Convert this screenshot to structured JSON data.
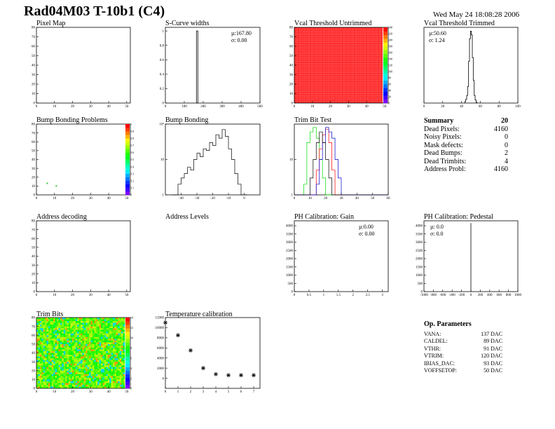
{
  "header": {
    "title": "Rad04M03 T-10b1 (C4)",
    "date": "Wed May 24 18:08:28 2006"
  },
  "panels": {
    "pixel_map": {
      "title": "Pixel Map"
    },
    "scurve": {
      "title": "S-Curve widths",
      "mu": "µ:167.80",
      "sigma": "σ: 0.00"
    },
    "vcal_untrimmed": {
      "title": "Vcal Threshold Untrimmed"
    },
    "vcal_trimmed": {
      "title": "Vcal Threshold Trimmed",
      "mu": "µ:50.60",
      "sigma": "σ: 1.24"
    },
    "bump_problems": {
      "title": "Bump Bonding Problems"
    },
    "bump_bonding": {
      "title": "Bump Bonding"
    },
    "trim_bit_test": {
      "title": "Trim Bit Test"
    },
    "address_decoding": {
      "title": "Address decoding"
    },
    "address_levels": {
      "title": "Address Levels"
    },
    "ph_gain": {
      "title": "PH Calibration: Gain",
      "mu": "µ:0.00",
      "sigma": "σ: 0.00"
    },
    "ph_pedestal": {
      "title": "PH Calibration: Pedestal",
      "mu": "µ: 0.0",
      "sigma": "σ: 0.0"
    },
    "trim_bits": {
      "title": "Trim Bits"
    },
    "temperature": {
      "title": "Temperature calibration"
    }
  },
  "summary": {
    "label": "Summary",
    "value": "20",
    "rows": [
      {
        "label": "Dead Pixels:",
        "value": "4160"
      },
      {
        "label": "Noisy Pixels:",
        "value": "0"
      },
      {
        "label": "Mask defects:",
        "value": "0"
      },
      {
        "label": "Dead Bumps:",
        "value": "2"
      },
      {
        "label": "Dead Trimbits:",
        "value": "4"
      },
      {
        "label": "Address Probl:",
        "value": "4160"
      }
    ]
  },
  "op_params": {
    "title": "Op. Parameters",
    "rows": [
      {
        "label": "VANA:",
        "value": "137 DAC"
      },
      {
        "label": "CALDEL:",
        "value": "89 DAC"
      },
      {
        "label": "VTHR:",
        "value": "91 DAC"
      },
      {
        "label": "VTRIM:",
        "value": "120 DAC"
      },
      {
        "label": "IBIAS_DAC:",
        "value": "93 DAC"
      },
      {
        "label": "VOFFSETOP:",
        "value": "50 DAC"
      }
    ]
  },
  "colors": {
    "frame": "#000000",
    "untrimmed_fill": "#ff2020",
    "trim_green": "#00dd00",
    "trim_red": "#ff0000",
    "trim_blue": "#0000cc"
  },
  "chart_data": [
    {
      "id": "pixel_map",
      "type": "heatmap",
      "xlim": [
        0,
        52
      ],
      "ylim": [
        0,
        80
      ],
      "xticks": [
        "0",
        "10",
        "20",
        "30",
        "40",
        "50"
      ],
      "yticks": [
        "0",
        "10",
        "20",
        "30",
        "40",
        "50",
        "60",
        "70",
        "80"
      ],
      "cells": []
    },
    {
      "id": "scurve",
      "type": "bar",
      "xlim": [
        0,
        500
      ],
      "ylim": [
        0,
        1.05
      ],
      "xticks": [
        "0",
        "100",
        "200",
        "300",
        "400",
        "500"
      ],
      "yticks": [
        "0",
        "0.2",
        "0.4",
        "0.6",
        "0.8",
        "1"
      ],
      "x": [
        167.8
      ],
      "values": [
        1
      ]
    },
    {
      "id": "vcal_untrimmed",
      "type": "heatmap",
      "xlim": [
        0,
        52
      ],
      "ylim": [
        0,
        80
      ],
      "xticks": [
        "0",
        "10",
        "20",
        "30",
        "40",
        "50"
      ],
      "yticks": [
        "0",
        "10",
        "20",
        "30",
        "40",
        "50",
        "60",
        "70",
        "80"
      ],
      "colorbar_ticks": [
        "0",
        "20",
        "40",
        "60",
        "80",
        "100",
        "120",
        "140",
        "160",
        "180",
        "200",
        "220",
        "240"
      ],
      "fill_value": 250
    },
    {
      "id": "vcal_trimmed",
      "type": "line",
      "xlim": [
        0,
        100
      ],
      "ylim": [
        0,
        1
      ],
      "xticks": [
        "0",
        "20",
        "40",
        "60",
        "80",
        "100"
      ],
      "yticks": [],
      "x": [
        44,
        45,
        46,
        47,
        48,
        49,
        50,
        51,
        52,
        53,
        54,
        55,
        56
      ],
      "values": [
        0.02,
        0.05,
        0.1,
        0.22,
        0.55,
        0.85,
        0.95,
        0.9,
        0.6,
        0.3,
        0.1,
        0.04,
        0.01
      ]
    },
    {
      "id": "bump_problems",
      "type": "scatter",
      "xlim": [
        0,
        52
      ],
      "ylim": [
        0,
        80
      ],
      "xticks": [
        "0",
        "10",
        "20",
        "30",
        "40",
        "50"
      ],
      "yticks": [
        "0",
        "10",
        "20",
        "30",
        "40",
        "50",
        "60",
        "70",
        "80"
      ],
      "colorbar_ticks": [
        "0",
        "0.1",
        "0.2",
        "0.3",
        "0.4",
        "0.5",
        "0.6",
        "0.7",
        "0.8",
        "0.9",
        "1"
      ],
      "x": [
        6,
        11
      ],
      "y": [
        13,
        10
      ]
    },
    {
      "id": "bump_bonding",
      "type": "line",
      "xlim": [
        -50,
        10
      ],
      "ylim": [
        1,
        100
      ],
      "yscale": "log",
      "xticks": [
        "-40",
        "-30",
        "-20",
        "-10",
        "0"
      ],
      "yticks": [
        "1",
        "10",
        "10²"
      ],
      "x": [
        -45,
        -43,
        -41,
        -39,
        -37,
        -35,
        -33,
        -31,
        -29,
        -27,
        -25,
        -23,
        -21,
        -19,
        -17,
        -15,
        -13,
        -11,
        -9,
        -7,
        -5,
        -3,
        -1,
        1
      ],
      "values": [
        1,
        1,
        2,
        3,
        4,
        6,
        5,
        10,
        15,
        12,
        20,
        18,
        30,
        25,
        50,
        40,
        70,
        45,
        20,
        10,
        4,
        2,
        1,
        1
      ]
    },
    {
      "id": "trim_bit_test",
      "type": "line",
      "xlim": [
        0,
        60
      ],
      "ylim": [
        1,
        100
      ],
      "yscale": "log",
      "xticks": [
        "0",
        "10",
        "20",
        "30",
        "40",
        "50",
        "60"
      ],
      "yticks": [
        "1",
        "10"
      ],
      "x": [
        0,
        2,
        4,
        6,
        8,
        10,
        12,
        14,
        16,
        18,
        20,
        22,
        24,
        26,
        28,
        30,
        32,
        34,
        36,
        38,
        40,
        42,
        44,
        46,
        48,
        50,
        52,
        54,
        56,
        58
      ],
      "series": [
        {
          "values": [
            1,
            1,
            1,
            2,
            30,
            60,
            80,
            40,
            10,
            3,
            1,
            1,
            1,
            1,
            1,
            1,
            1,
            1,
            1,
            1,
            1,
            1,
            1,
            1,
            1,
            1,
            1,
            1,
            1,
            1
          ]
        },
        {
          "values": [
            1,
            1,
            1,
            1,
            1,
            1,
            1,
            5,
            20,
            50,
            70,
            30,
            5,
            1,
            1,
            1,
            1,
            1,
            1,
            1,
            1,
            1,
            1,
            1,
            1,
            1,
            1,
            1,
            1,
            1
          ]
        },
        {
          "values": [
            1,
            1,
            1,
            1,
            1,
            1,
            1,
            2,
            10,
            30,
            80,
            60,
            40,
            10,
            3,
            1,
            1,
            1,
            1,
            1,
            1,
            1,
            1,
            1,
            1,
            1,
            1,
            1,
            1,
            1
          ]
        },
        {
          "values": [
            1,
            1,
            1,
            1,
            1,
            3,
            10,
            30,
            60,
            30,
            10,
            3,
            1,
            1,
            1,
            1,
            1,
            1,
            1,
            1,
            1,
            1,
            1,
            1,
            1,
            1,
            1,
            1,
            1,
            1
          ]
        }
      ]
    },
    {
      "id": "address_decoding",
      "type": "heatmap",
      "xlim": [
        0,
        52
      ],
      "ylim": [
        0,
        80
      ],
      "xticks": [
        "0",
        "10",
        "20",
        "30",
        "40",
        "50"
      ],
      "yticks": [
        "0",
        "10",
        "20",
        "30",
        "40",
        "50",
        "60",
        "70",
        "80"
      ],
      "cells": []
    },
    {
      "id": "ph_gain",
      "type": "bar",
      "xlim": [
        0,
        3.2
      ],
      "ylim": [
        0,
        4300
      ],
      "xticks": [
        "0",
        "0.5",
        "1",
        "1.5",
        "2",
        "2.5",
        "3"
      ],
      "yticks": [
        "0",
        "500",
        "1000",
        "1500",
        "2000",
        "2500",
        "3000",
        "3500",
        "4000"
      ],
      "x": [],
      "values": []
    },
    {
      "id": "ph_pedestal",
      "type": "bar",
      "xlim": [
        -1000,
        1000
      ],
      "ylim": [
        0,
        4300
      ],
      "xticks": [
        "-1000",
        "-800",
        "-600",
        "-400",
        "-200",
        "0",
        "200",
        "400",
        "600",
        "800",
        "1000"
      ],
      "yticks": [
        "0",
        "500",
        "1000",
        "1500",
        "2000",
        "2500",
        "3000",
        "3500",
        "4000"
      ],
      "x": [
        0
      ],
      "values": [
        4160
      ]
    },
    {
      "id": "trim_bits",
      "type": "heatmap",
      "xlim": [
        0,
        52
      ],
      "ylim": [
        0,
        80
      ],
      "xticks": [
        "0",
        "10",
        "20",
        "30",
        "40",
        "50"
      ],
      "yticks": [
        "0",
        "10",
        "20",
        "30",
        "40",
        "50",
        "60",
        "70",
        "80"
      ],
      "colorbar_ticks": [
        "0",
        "2",
        "4",
        "6",
        "8",
        "10",
        "12",
        "14"
      ]
    },
    {
      "id": "temperature",
      "type": "scatter",
      "xlim": [
        0,
        7.5
      ],
      "ylim": [
        -2000,
        12000
      ],
      "xticks": [
        "0",
        "1",
        "2",
        "3",
        "4",
        "5",
        "6",
        "7"
      ],
      "yticks": [
        "0",
        "2000",
        "4000",
        "6000",
        "8000",
        "10000",
        "12000"
      ],
      "x": [
        0,
        1,
        2,
        3,
        4,
        5,
        6,
        7
      ],
      "values": [
        11000,
        8500,
        5500,
        2000,
        800,
        600,
        600,
        600
      ]
    }
  ]
}
